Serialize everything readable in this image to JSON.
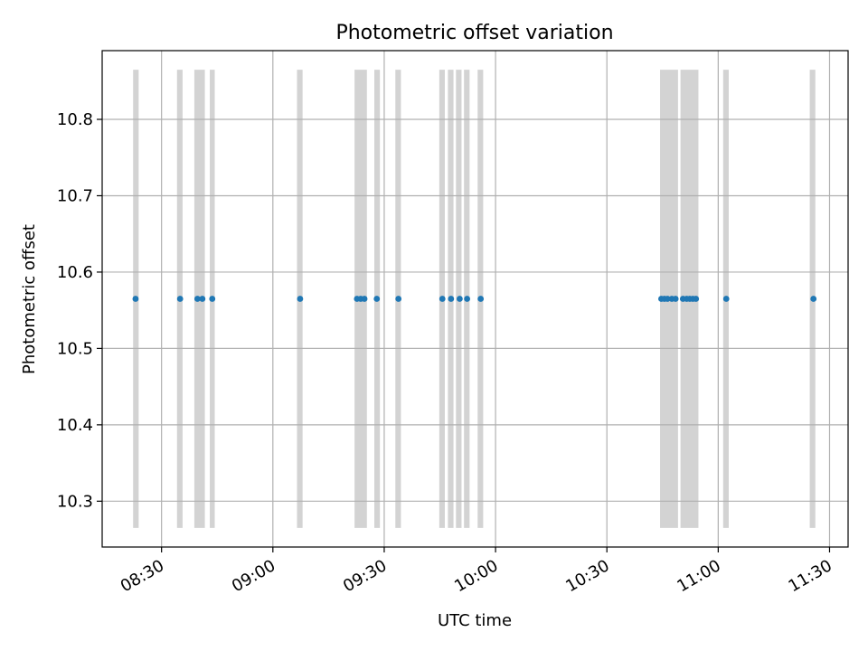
{
  "chart_data": {
    "type": "scatter",
    "title": "Photometric offset variation",
    "xlabel": "UTC time",
    "ylabel": "Photometric offset",
    "xlim": [
      "08:14",
      "11:35"
    ],
    "ylim": [
      10.24,
      10.89
    ],
    "x_ticks": [
      "08:30",
      "09:00",
      "09:30",
      "10:00",
      "10:30",
      "11:00",
      "11:30"
    ],
    "y_ticks": [
      10.3,
      10.4,
      10.5,
      10.6,
      10.7,
      10.8
    ],
    "y_tick_labels": [
      "10.3",
      "10.4",
      "10.5",
      "10.6",
      "10.7",
      "10.8"
    ],
    "grid": true,
    "shaded_range": [
      10.265,
      10.865
    ],
    "shaded_intervals": [
      [
        "08:22:20",
        "08:23:50"
      ],
      [
        "08:34:10",
        "08:35:40"
      ],
      [
        "08:38:50",
        "08:41:40"
      ],
      [
        "08:43:00",
        "08:44:20"
      ],
      [
        "09:06:30",
        "09:08:00"
      ],
      [
        "09:22:00",
        "09:25:20"
      ],
      [
        "09:27:20",
        "09:28:50"
      ],
      [
        "09:33:00",
        "09:34:30"
      ],
      [
        "09:44:50",
        "09:46:20"
      ],
      [
        "09:47:10",
        "09:48:40"
      ],
      [
        "09:49:20",
        "09:50:50"
      ],
      [
        "09:51:30",
        "09:53:00"
      ],
      [
        "09:55:10",
        "09:56:40"
      ],
      [
        "10:44:20",
        "10:49:10"
      ],
      [
        "10:49:50",
        "10:54:40"
      ],
      [
        "11:01:20",
        "11:02:50"
      ],
      [
        "11:24:40",
        "11:26:10"
      ]
    ],
    "series": [
      {
        "x": [
          "08:23:00",
          "08:35:00",
          "08:39:40",
          "08:41:00",
          "08:43:40",
          "09:07:20",
          "09:22:40",
          "09:23:40",
          "09:24:40",
          "09:28:00",
          "09:33:50",
          "09:45:40",
          "09:48:00",
          "09:50:20",
          "09:52:20",
          "09:56:00",
          "10:44:40",
          "10:45:30",
          "10:46:20",
          "10:47:30",
          "10:48:30",
          "10:50:30",
          "10:51:30",
          "10:52:20",
          "10:53:10",
          "10:54:00",
          "11:02:10",
          "11:25:40"
        ],
        "y": [
          10.565,
          10.565,
          10.565,
          10.565,
          10.565,
          10.565,
          10.565,
          10.565,
          10.565,
          10.565,
          10.565,
          10.565,
          10.565,
          10.565,
          10.565,
          10.565,
          10.565,
          10.565,
          10.565,
          10.565,
          10.565,
          10.565,
          10.565,
          10.565,
          10.565,
          10.565,
          10.565,
          10.565
        ]
      }
    ]
  },
  "colors": {
    "points": "#1f77b4",
    "shading": "#d3d3d3",
    "grid": "#b0b0b0",
    "axes": "#000000"
  }
}
